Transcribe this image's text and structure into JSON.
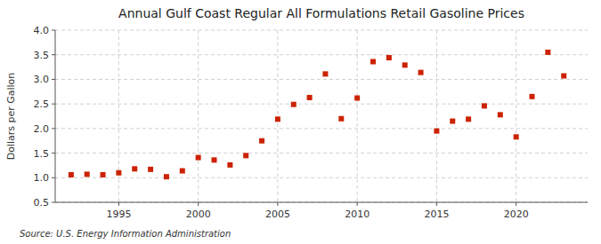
{
  "chart_data": {
    "type": "scatter",
    "title": "Annual Gulf Coast Regular All Formulations Retail Gasoline Prices",
    "ylabel": "Dollars per Gallon",
    "annotations": [
      "Source: U.S. Energy Information Administration"
    ],
    "x": [
      1992,
      1993,
      1994,
      1995,
      1996,
      1997,
      1998,
      1999,
      2000,
      2001,
      2002,
      2003,
      2004,
      2005,
      2006,
      2007,
      2008,
      2009,
      2010,
      2011,
      2012,
      2013,
      2014,
      2015,
      2016,
      2017,
      2018,
      2019,
      2020,
      2021,
      2022,
      2023
    ],
    "values": [
      1.06,
      1.07,
      1.06,
      1.1,
      1.18,
      1.17,
      1.02,
      1.14,
      1.41,
      1.36,
      1.26,
      1.45,
      1.75,
      2.19,
      2.49,
      2.63,
      3.11,
      2.2,
      2.62,
      3.36,
      3.44,
      3.29,
      3.14,
      1.95,
      2.15,
      2.19,
      2.46,
      2.28,
      1.83,
      2.65,
      3.55,
      3.07
    ],
    "color": "#cc2200",
    "marker": "square",
    "grid": true,
    "xlim": [
      1991.0,
      2024.5
    ],
    "xticks": [
      1995,
      2000,
      2005,
      2010,
      2015,
      2020
    ],
    "ylim": [
      0.5,
      4.0
    ],
    "yticks": [
      0.5,
      {
        "value": 1.0,
        "label": "1.0"
      },
      1.5,
      {
        "value": 2.0,
        "label": "2.0"
      },
      2.5,
      {
        "value": 3.0,
        "label": "3.0"
      },
      3.5,
      {
        "value": 4.0,
        "label": "4.0"
      }
    ]
  }
}
